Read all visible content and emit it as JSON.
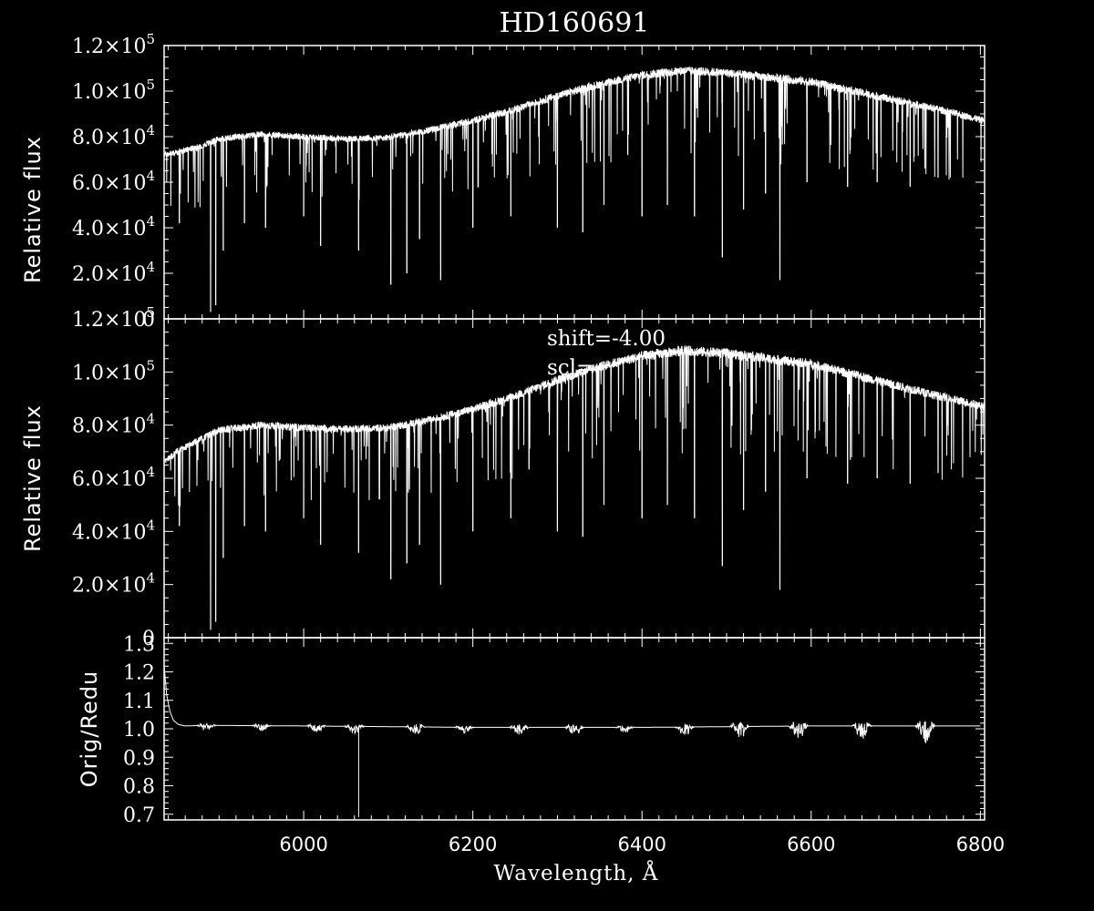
{
  "chart_data": [
    {
      "type": "line",
      "title": "HD160691",
      "ylabel": "Relative flux",
      "xlim": [
        5835,
        6805
      ],
      "ylim": [
        0,
        120000
      ],
      "yticks": [
        {
          "value": 0,
          "mant": "0",
          "exp": ""
        },
        {
          "value": 20000,
          "mant": "2.0×10",
          "exp": "4"
        },
        {
          "value": 40000,
          "mant": "4.0×10",
          "exp": "4"
        },
        {
          "value": 60000,
          "mant": "6.0×10",
          "exp": "4"
        },
        {
          "value": 80000,
          "mant": "8.0×10",
          "exp": "4"
        },
        {
          "value": 100000,
          "mant": "1.0×10",
          "exp": "5"
        },
        {
          "value": 120000,
          "mant": "1.2×10",
          "exp": "5"
        }
      ],
      "continuum": {
        "x": [
          5835,
          5850,
          5880,
          5900,
          5950,
          6000,
          6050,
          6100,
          6150,
          6200,
          6250,
          6300,
          6350,
          6400,
          6450,
          6500,
          6550,
          6600,
          6650,
          6700,
          6750,
          6805
        ],
        "y": [
          72000,
          73000,
          76000,
          79000,
          81000,
          80000,
          79000,
          79500,
          83000,
          87000,
          92000,
          98000,
          103000,
          107000,
          109000,
          108000,
          106000,
          104000,
          100000,
          96000,
          92000,
          87000
        ]
      },
      "absorption_lines": [
        {
          "x": 5890,
          "y": 3000
        },
        {
          "x": 5896,
          "y": 6000
        },
        {
          "x": 5853,
          "y": 42000
        },
        {
          "x": 5905,
          "y": 30000
        },
        {
          "x": 5930,
          "y": 42000
        },
        {
          "x": 5955,
          "y": 40000
        },
        {
          "x": 6000,
          "y": 45000
        },
        {
          "x": 6020,
          "y": 32000
        },
        {
          "x": 6065,
          "y": 30000
        },
        {
          "x": 6103,
          "y": 15000
        },
        {
          "x": 6122,
          "y": 20000
        },
        {
          "x": 6137,
          "y": 35000
        },
        {
          "x": 6162,
          "y": 17000
        },
        {
          "x": 6200,
          "y": 40000
        },
        {
          "x": 6245,
          "y": 45000
        },
        {
          "x": 6300,
          "y": 40000
        },
        {
          "x": 6330,
          "y": 38000
        },
        {
          "x": 6355,
          "y": 50000
        },
        {
          "x": 6400,
          "y": 45000
        },
        {
          "x": 6430,
          "y": 50000
        },
        {
          "x": 6462,
          "y": 45000
        },
        {
          "x": 6495,
          "y": 27000
        },
        {
          "x": 6520,
          "y": 48000
        },
        {
          "x": 6546,
          "y": 55000
        },
        {
          "x": 6563,
          "y": 17000
        },
        {
          "x": 6595,
          "y": 60000
        },
        {
          "x": 6643,
          "y": 58000
        },
        {
          "x": 6678,
          "y": 60000
        },
        {
          "x": 6717,
          "y": 58000
        },
        {
          "x": 6750,
          "y": 62000
        }
      ]
    },
    {
      "type": "line",
      "ylabel": "Relative flux",
      "xlim": [
        5835,
        6805
      ],
      "ylim": [
        0,
        120000
      ],
      "annotations": [
        "shift=-4.00",
        "scl="
      ],
      "yticks": [
        {
          "value": 0,
          "mant": "0",
          "exp": ""
        },
        {
          "value": 20000,
          "mant": "2.0×10",
          "exp": "4"
        },
        {
          "value": 40000,
          "mant": "4.0×10",
          "exp": "4"
        },
        {
          "value": 60000,
          "mant": "6.0×10",
          "exp": "4"
        },
        {
          "value": 80000,
          "mant": "8.0×10",
          "exp": "4"
        },
        {
          "value": 100000,
          "mant": "1.0×10",
          "exp": "5"
        },
        {
          "value": 120000,
          "mant": "1.2×10",
          "exp": "5"
        }
      ],
      "continuum": {
        "x": [
          5835,
          5850,
          5880,
          5900,
          5950,
          6000,
          6050,
          6100,
          6150,
          6200,
          6250,
          6300,
          6350,
          6400,
          6450,
          6500,
          6550,
          6600,
          6650,
          6700,
          6750,
          6805
        ],
        "y": [
          66000,
          70000,
          75000,
          78000,
          80000,
          79000,
          78500,
          79000,
          82000,
          86000,
          91000,
          97000,
          102000,
          106000,
          108000,
          107000,
          105000,
          103000,
          99000,
          95000,
          91000,
          87000
        ]
      },
      "absorption_lines": [
        {
          "x": 5890,
          "y": 3000
        },
        {
          "x": 5896,
          "y": 6000
        },
        {
          "x": 5853,
          "y": 42000
        },
        {
          "x": 5905,
          "y": 30000
        },
        {
          "x": 5930,
          "y": 42000
        },
        {
          "x": 5955,
          "y": 40000
        },
        {
          "x": 6000,
          "y": 45000
        },
        {
          "x": 6020,
          "y": 35000
        },
        {
          "x": 6065,
          "y": 32000
        },
        {
          "x": 6103,
          "y": 22000
        },
        {
          "x": 6122,
          "y": 28000
        },
        {
          "x": 6137,
          "y": 35000
        },
        {
          "x": 6162,
          "y": 20000
        },
        {
          "x": 6200,
          "y": 40000
        },
        {
          "x": 6245,
          "y": 45000
        },
        {
          "x": 6300,
          "y": 40000
        },
        {
          "x": 6330,
          "y": 38000
        },
        {
          "x": 6355,
          "y": 50000
        },
        {
          "x": 6400,
          "y": 45000
        },
        {
          "x": 6430,
          "y": 50000
        },
        {
          "x": 6462,
          "y": 45000
        },
        {
          "x": 6495,
          "y": 27000
        },
        {
          "x": 6520,
          "y": 48000
        },
        {
          "x": 6546,
          "y": 55000
        },
        {
          "x": 6563,
          "y": 18000
        },
        {
          "x": 6595,
          "y": 60000
        },
        {
          "x": 6643,
          "y": 58000
        },
        {
          "x": 6678,
          "y": 60000
        },
        {
          "x": 6717,
          "y": 58000
        },
        {
          "x": 6750,
          "y": 62000
        }
      ]
    },
    {
      "type": "line",
      "ylabel": "Orig/Redu",
      "xlabel": "Wavelength, Å",
      "xlim": [
        5835,
        6805
      ],
      "ylim": [
        0.68,
        1.32
      ],
      "yticks": [
        {
          "value": 0.7,
          "mant": "0.7",
          "exp": ""
        },
        {
          "value": 0.8,
          "mant": "0.8",
          "exp": ""
        },
        {
          "value": 0.9,
          "mant": "0.9",
          "exp": ""
        },
        {
          "value": 1.0,
          "mant": "1.0",
          "exp": ""
        },
        {
          "value": 1.1,
          "mant": "1.1",
          "exp": ""
        },
        {
          "value": 1.2,
          "mant": "1.2",
          "exp": ""
        },
        {
          "value": 1.3,
          "mant": "1.3",
          "exp": ""
        }
      ],
      "xticks": [
        6000,
        6200,
        6400,
        6600,
        6800
      ],
      "ratio": {
        "x": [
          5835,
          5838,
          5842,
          5846,
          5852,
          5860,
          5880,
          6000,
          6200,
          6400,
          6600,
          6805
        ],
        "y": [
          1.22,
          1.12,
          1.06,
          1.03,
          1.015,
          1.01,
          1.012,
          1.01,
          1.005,
          1.005,
          1.01,
          1.01
        ]
      },
      "order_edges": [
        {
          "x": 5885,
          "amp": 0.015
        },
        {
          "x": 5950,
          "amp": 0.015
        },
        {
          "x": 6015,
          "amp": 0.015
        },
        {
          "x": 6060,
          "amp": 0.02
        },
        {
          "x": 6132,
          "amp": 0.02
        },
        {
          "x": 6190,
          "amp": 0.015
        },
        {
          "x": 6255,
          "amp": 0.02
        },
        {
          "x": 6320,
          "amp": 0.02
        },
        {
          "x": 6380,
          "amp": 0.015
        },
        {
          "x": 6450,
          "amp": 0.025
        },
        {
          "x": 6515,
          "amp": 0.035
        },
        {
          "x": 6585,
          "amp": 0.035
        },
        {
          "x": 6660,
          "amp": 0.035
        },
        {
          "x": 6735,
          "amp": 0.045
        }
      ],
      "spikes": [
        {
          "x": 6065,
          "y": 0.69
        }
      ]
    }
  ]
}
